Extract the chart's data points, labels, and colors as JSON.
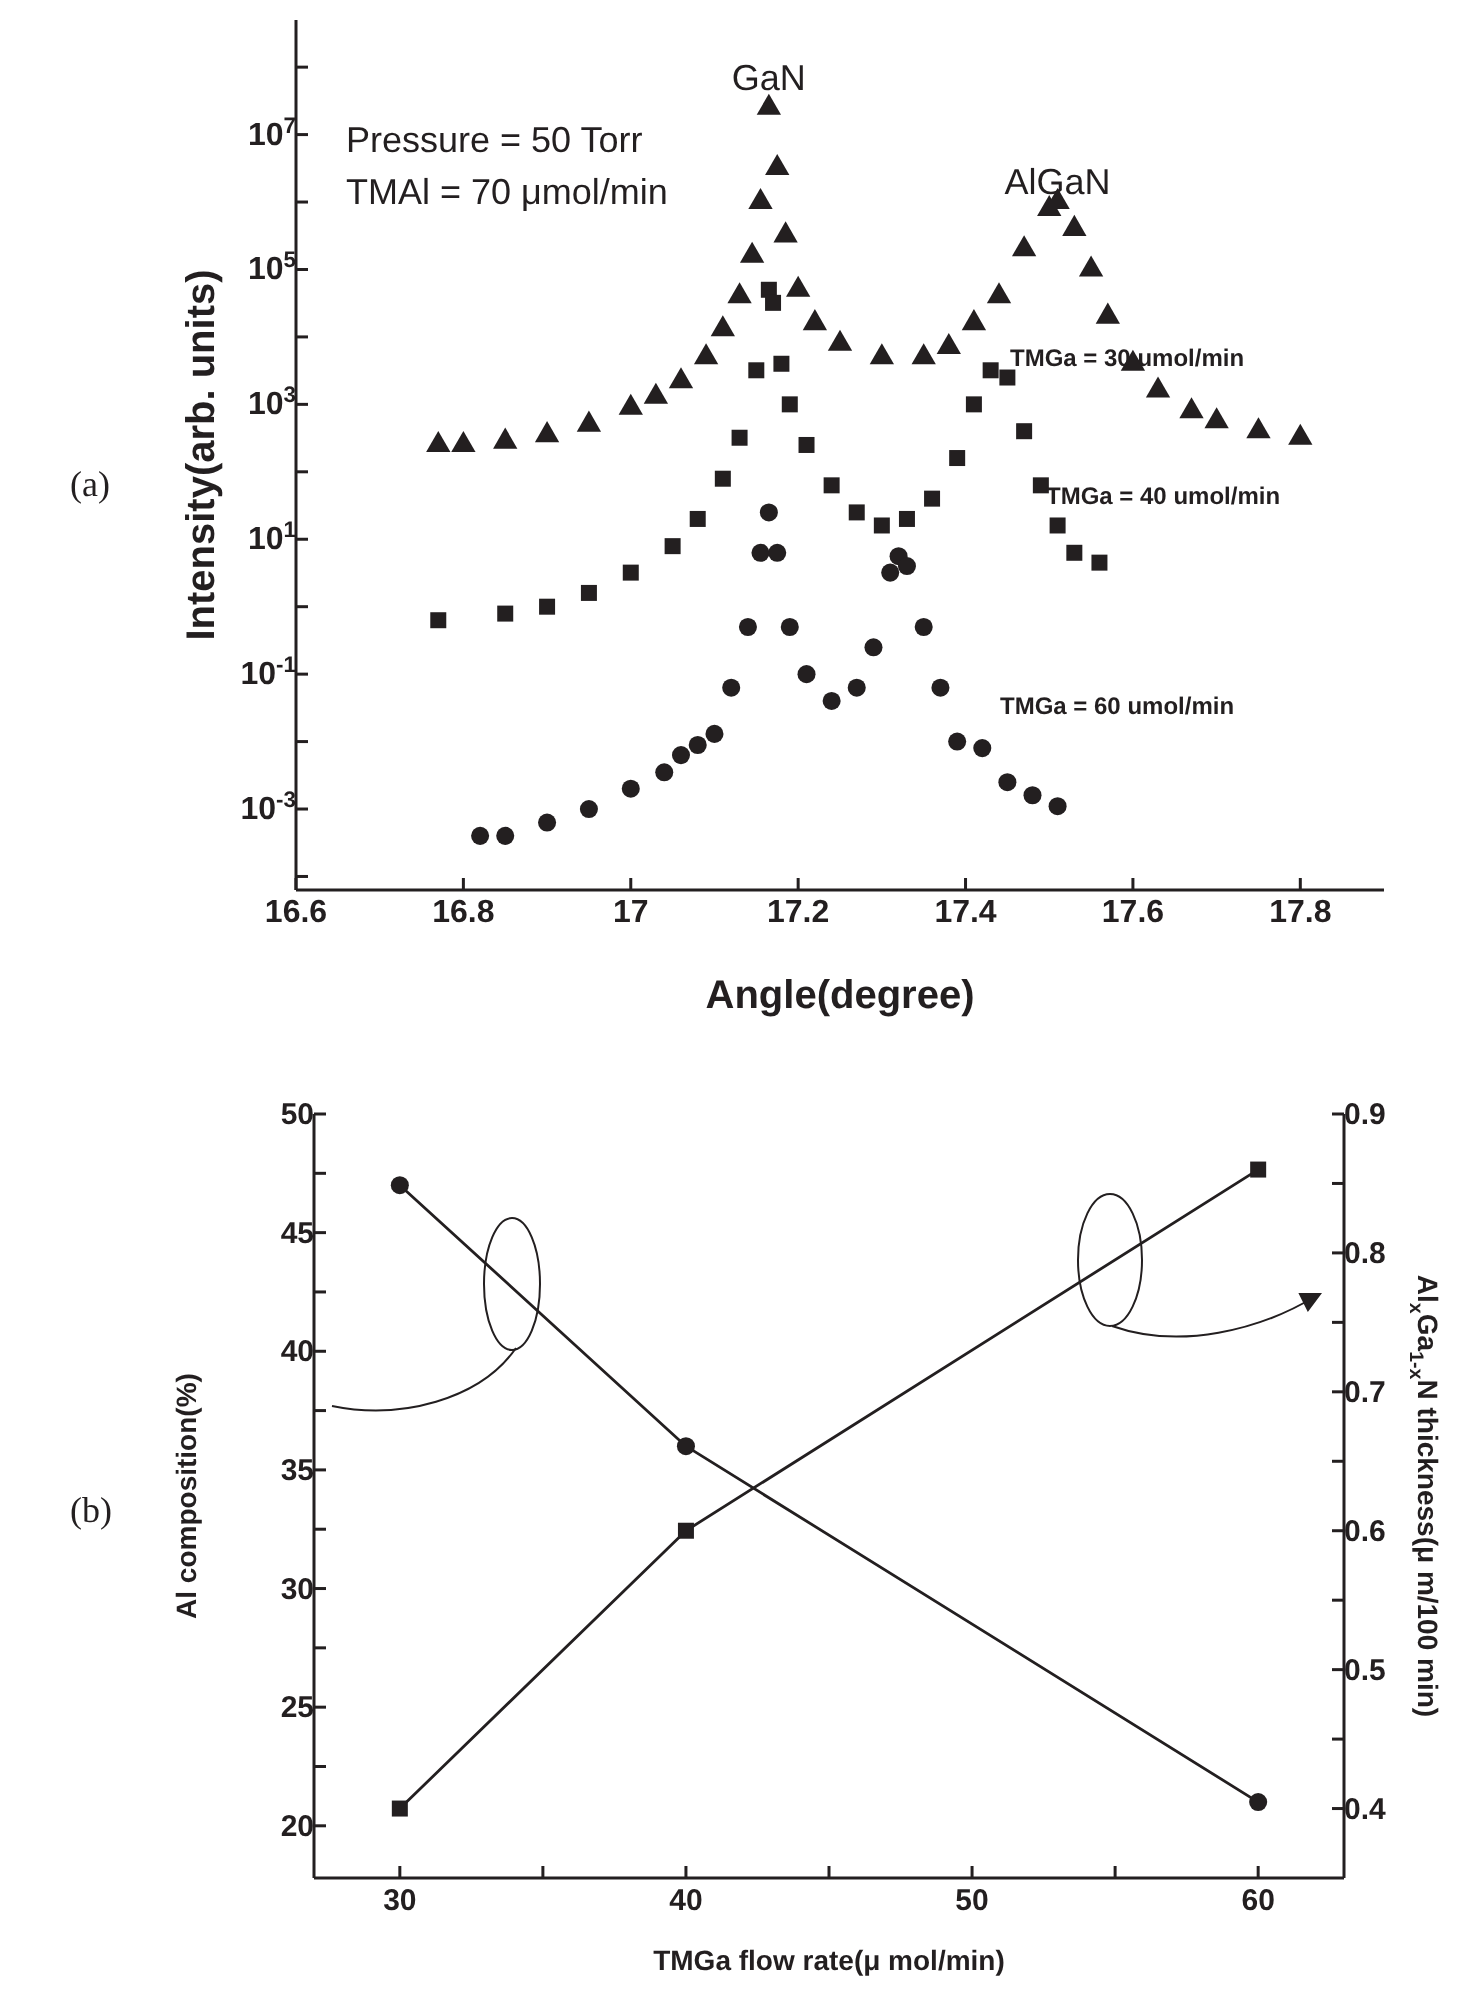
{
  "chart_data": [
    {
      "type": "scatter",
      "xlabel": "Angle(degree)",
      "ylabel": "Intensity(arb. units)",
      "log": "y",
      "xlim": [
        16.6,
        17.9
      ],
      "xticks": [
        16.6,
        16.8,
        17.0,
        17.2,
        17.4,
        17.6,
        17.8
      ],
      "ylim": [
        6.3e-05,
        500000000.0
      ],
      "yticks": [
        {
          "value": 0.0001,
          "label": null
        },
        {
          "value": 0.001,
          "label": "10$^{-3}$"
        },
        {
          "value": 0.01,
          "label": null
        },
        {
          "value": 0.1,
          "label": "10$^{-1}$"
        },
        {
          "value": 1,
          "label": null
        },
        {
          "value": 10,
          "label": "10$^{1}$"
        },
        {
          "value": 100,
          "label": null
        },
        {
          "value": 1000,
          "label": "10$^{3}$"
        },
        {
          "value": 10000,
          "label": null
        },
        {
          "value": 100000,
          "label": "10$^{5}$"
        },
        {
          "value": 1000000,
          "label": null
        },
        {
          "value": 10000000,
          "label": "10$^{7}$"
        },
        {
          "value": 100000000,
          "label": null
        }
      ],
      "annotations": [
        "(a)",
        "Pressure = 50 Torr",
        "TMAl = 70 μmol/min",
        {
          "text": "GaN",
          "x": 17.165,
          "y": 35000000.0
        },
        {
          "text": "AlGaN",
          "x": 17.51,
          "y": 1000000.0
        }
      ],
      "series": [
        {
          "name": "TMGa = 30 umol/min",
          "color": "#231f20",
          "marker": "triangle",
          "x": [
            16.77,
            16.8,
            16.85,
            16.9,
            16.95,
            17.0,
            17.03,
            17.06,
            17.09,
            17.11,
            17.13,
            17.145,
            17.155,
            17.165,
            17.175,
            17.185,
            17.2,
            17.22,
            17.25,
            17.3,
            17.35,
            17.38,
            17.41,
            17.44,
            17.47,
            17.5,
            17.51,
            17.53,
            17.55,
            17.57,
            17.6,
            17.63,
            17.67,
            17.7,
            17.75,
            17.8
          ],
          "values": [
            250,
            250,
            280,
            350,
            500,
            890,
            1300,
            2200,
            5000,
            13000,
            40000,
            160000,
            1000000,
            25000000,
            3200000,
            320000,
            50000,
            16000,
            7900,
            5000,
            5000,
            7100,
            16000,
            40000,
            200000,
            790000,
            1000000,
            400000,
            100000,
            20000,
            4000,
            1600,
            790,
            560,
            400,
            320
          ]
        },
        {
          "name": "TMGa = 40 umol/min",
          "color": "#231f20",
          "marker": "square",
          "x": [
            16.77,
            16.85,
            16.9,
            16.95,
            17.0,
            17.05,
            17.08,
            17.11,
            17.13,
            17.15,
            17.16,
            17.165,
            17.17,
            17.18,
            17.19,
            17.21,
            17.24,
            17.27,
            17.3,
            17.33,
            17.36,
            17.39,
            17.41,
            17.43,
            17.45,
            17.47,
            17.49,
            17.51,
            17.53,
            17.56
          ],
          "values": [
            0.63,
            0.79,
            1,
            1.6,
            3.2,
            7.9,
            20,
            79,
            320,
            3200,
            null,
            50000,
            32000,
            4000,
            1000,
            250,
            63,
            25,
            16,
            20,
            40,
            160,
            1000,
            3200,
            2500,
            400,
            63,
            16,
            6.3,
            4.5
          ]
        },
        {
          "name": "TMGa = 60 umol/min",
          "color": "#231f20",
          "marker": "circle",
          "x": [
            16.82,
            16.85,
            16.9,
            16.95,
            17.0,
            17.04,
            17.06,
            17.08,
            17.1,
            17.12,
            17.14,
            17.155,
            17.165,
            17.175,
            17.19,
            17.21,
            17.24,
            17.27,
            17.29,
            17.31,
            17.32,
            17.33,
            17.35,
            17.37,
            17.39,
            17.42,
            17.45,
            17.48,
            17.51
          ],
          "values": [
            0.0004,
            0.0004,
            0.00063,
            0.001,
            0.002,
            0.0035,
            0.0063,
            0.0089,
            0.013,
            0.063,
            0.5,
            6.3,
            25,
            6.3,
            0.5,
            0.1,
            0.04,
            0.063,
            0.25,
            3.2,
            5.6,
            4,
            0.5,
            0.063,
            0.01,
            0.008,
            0.0025,
            0.0016,
            0.0011
          ]
        }
      ]
    },
    {
      "type": "line",
      "xlabel": "TMGa flow rate(μ mol/min)",
      "ylabel": "Al composition(%)",
      "y2label": "Al$_{x}$Ga$_{1-x}$N thickness(μ m/100 min)",
      "xlim": [
        27,
        63
      ],
      "xticks": [
        30,
        {
          "value": 35,
          "label": null
        },
        40,
        {
          "value": 45,
          "label": null
        },
        50,
        {
          "value": 55,
          "label": null
        },
        60
      ],
      "ylim": [
        17.8,
        50
      ],
      "yticks": [
        20,
        {
          "value": 22.5,
          "label": null
        },
        25,
        {
          "value": 27.5,
          "label": null
        },
        30,
        {
          "value": 32.5,
          "label": null
        },
        35,
        {
          "value": 37.5,
          "label": null
        },
        40,
        {
          "value": 42.5,
          "label": null
        },
        45,
        {
          "value": 47.5,
          "label": null
        },
        50
      ],
      "y2lim": [
        0.35,
        0.9
      ],
      "y2ticks": [
        0.4,
        {
          "value": 0.45,
          "label": null
        },
        0.5,
        {
          "value": 0.55,
          "label": null
        },
        0.6,
        {
          "value": 0.65,
          "label": null
        },
        0.7,
        {
          "value": 0.75,
          "label": null
        },
        0.8,
        {
          "value": 0.85,
          "label": null
        },
        0.9
      ],
      "annotations": [
        "(b)"
      ],
      "x": [
        30,
        40,
        60
      ],
      "line_style": "solid",
      "series": [
        {
          "color": "#231f20",
          "marker": "circle",
          "values": [
            47,
            36,
            21
          ]
        },
        {
          "color": "#231f20",
          "marker": "square",
          "axis": "y2",
          "values": [
            0.4,
            0.6,
            0.86
          ]
        }
      ]
    }
  ]
}
